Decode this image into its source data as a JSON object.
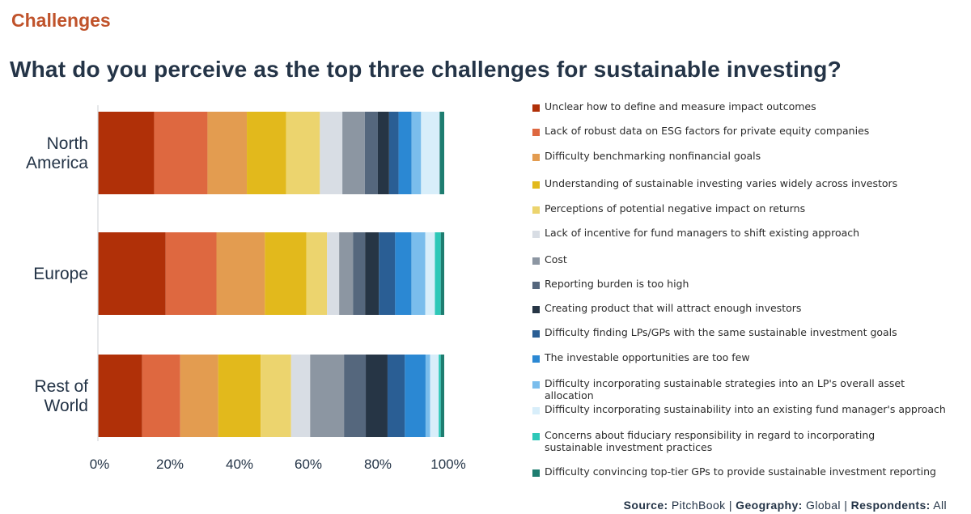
{
  "section_label": "Challenges",
  "section_color": "#c0532b",
  "chart_data": {
    "type": "bar",
    "orientation": "horizontal",
    "stacked": true,
    "percent_stacked": true,
    "title": "What do you perceive as the top three challenges for sustainable investing?",
    "categories": [
      "North\nAmerica",
      "Europe",
      "Rest of\nWorld"
    ],
    "x_ticks": [
      "0%",
      "20%",
      "40%",
      "60%",
      "80%",
      "100%"
    ],
    "xlim": [
      0,
      100
    ],
    "legend_position": "right",
    "grid": false,
    "series": [
      {
        "name": "Unclear how to define and measure impact outcomes",
        "color": "#b03008",
        "values": [
          16.0,
          19.6,
          12.8
        ]
      },
      {
        "name": "Lack of robust data on ESG factors for private equity companies",
        "color": "#de6840",
        "values": [
          15.2,
          14.7,
          11.0
        ]
      },
      {
        "name": "Difficulty benchmarking nonfinancial goals",
        "color": "#e39c50",
        "values": [
          11.2,
          14.0,
          11.0
        ]
      },
      {
        "name": "Understanding of sustainable investing varies widely across investors",
        "color": "#e2b91c",
        "values": [
          11.2,
          12.0,
          12.3
        ]
      },
      {
        "name": "Perceptions of potential negative impact on returns",
        "color": "#ecd46e",
        "values": [
          9.6,
          6.0,
          8.8
        ]
      },
      {
        "name": "Lack of incentive for fund managers to shift existing approach",
        "color": "#d8dde4",
        "values": [
          6.4,
          3.5,
          5.5
        ]
      },
      {
        "name": "Cost",
        "color": "#8c96a2",
        "values": [
          6.4,
          4.0,
          9.8
        ]
      },
      {
        "name": "Reporting burden is too high",
        "color": "#55677d",
        "values": [
          3.7,
          3.5,
          6.3
        ]
      },
      {
        "name": "Creating product that will attract enough investors",
        "color": "#263545",
        "values": [
          3.2,
          4.0,
          6.3
        ]
      },
      {
        "name": "Difficulty finding LPs/GPs with the same sustainable investment goals",
        "color": "#2a5e94",
        "values": [
          2.7,
          4.7,
          5.0
        ]
      },
      {
        "name": "The investable opportunities are too few",
        "color": "#2b88d3",
        "values": [
          3.7,
          4.7,
          6.0
        ]
      },
      {
        "name": "Difficulty incorporating sustainable strategies into an LP's overall asset allocation",
        "color": "#7abdec",
        "values": [
          2.7,
          4.0,
          1.3
        ]
      },
      {
        "name": "Difficulty incorporating sustainability into an existing fund manager's approach",
        "color": "#d8eefa",
        "values": [
          5.3,
          2.8,
          2.5
        ]
      },
      {
        "name": "Concerns about fiduciary responsibility in regard to incorporating sustainable investment practices",
        "color": "#2ec8b8",
        "values": [
          0.0,
          1.7,
          0.6
        ]
      },
      {
        "name": "Difficulty convincing top-tier GPs to provide sustainable investment reporting",
        "color": "#1e7d70",
        "values": [
          1.3,
          1.0,
          1.0
        ]
      }
    ]
  },
  "source": {
    "source_label": "Source:",
    "source_value": "PitchBook",
    "sep1": "|",
    "geo_label": "Geography:",
    "geo_value": "Global",
    "sep2": "|",
    "resp_label": "Respondents:",
    "resp_value": "All"
  }
}
